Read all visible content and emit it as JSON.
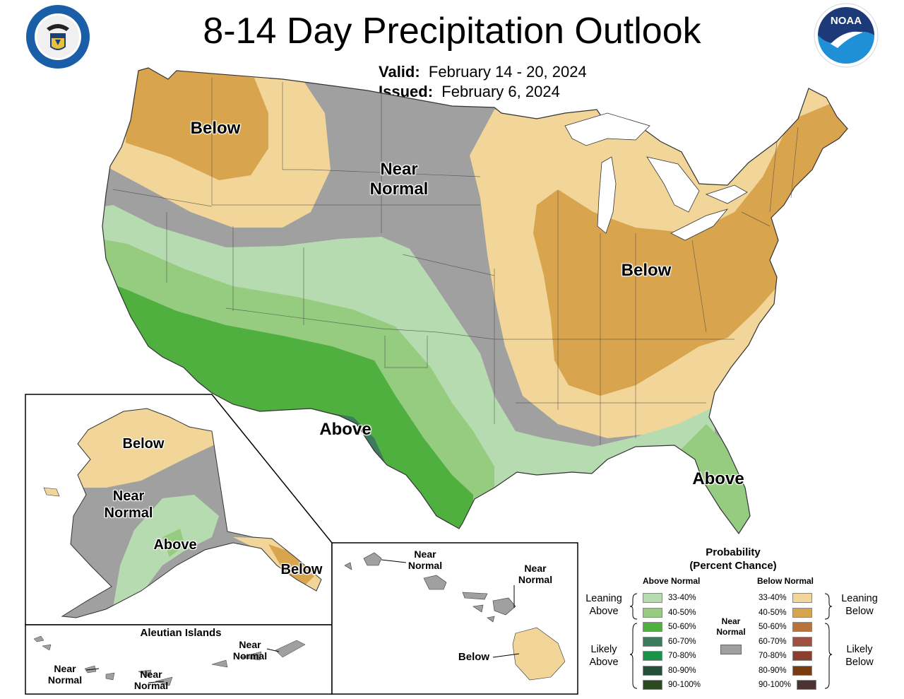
{
  "title": "8-14 Day Precipitation Outlook",
  "valid_label": "Valid:",
  "valid_value": "February 14 - 20, 2024",
  "issued_label": "Issued:",
  "issued_value": "February 6, 2024",
  "logos": {
    "left": "Department of Commerce seal",
    "right": "NOAA logo",
    "noaa_text": "NOAA"
  },
  "colors": {
    "above_33_40": "#b7dbb0",
    "above_40_50": "#95cc7f",
    "above_50_60": "#4fb040",
    "above_60_70": "#3e7a5c",
    "above_70_80": "#17944a",
    "above_80_90": "#24503a",
    "above_90_100": "#2b4a22",
    "below_33_40": "#f2d699",
    "below_40_50": "#d9a44e",
    "below_50_60": "#b8733a",
    "below_60_70": "#a0503f",
    "below_70_80": "#8c3e2e",
    "below_80_90": "#7a3b10",
    "below_90_100": "#4a3332",
    "near_normal": "#a0a0a0",
    "great_lakes": "#ffffff"
  },
  "regions": {
    "nw_below": "Below",
    "north_near": "Near\nNormal",
    "east_below": "Below",
    "sw_above": "Above",
    "fl_above": "Above"
  },
  "alaska": {
    "below_north": "Below",
    "near": "Near\nNormal",
    "above": "Above",
    "below_panhandle": "Below"
  },
  "aleutian": {
    "title": "Aleutian Islands",
    "near1": "Near\nNormal",
    "near2": "Near\nNormal",
    "near3": "Near\nNormal"
  },
  "hawaii": {
    "near_west": "Near\nNormal",
    "near_east": "Near\nNormal",
    "below": "Below"
  },
  "legend": {
    "title_line1": "Probability",
    "title_line2": "(Percent Chance)",
    "above_header": "Above Normal",
    "below_header": "Below Normal",
    "near_label": "Near\nNormal",
    "leaning_above": "Leaning\nAbove",
    "likely_above": "Likely\nAbove",
    "leaning_below": "Leaning\nBelow",
    "likely_below": "Likely\nBelow",
    "above_bins": [
      "33-40%",
      "40-50%",
      "50-60%",
      "60-70%",
      "70-80%",
      "80-90%",
      "90-100%"
    ],
    "below_bins": [
      "33-40%",
      "40-50%",
      "50-60%",
      "60-70%",
      "70-80%",
      "80-90%",
      "90-100%"
    ]
  }
}
